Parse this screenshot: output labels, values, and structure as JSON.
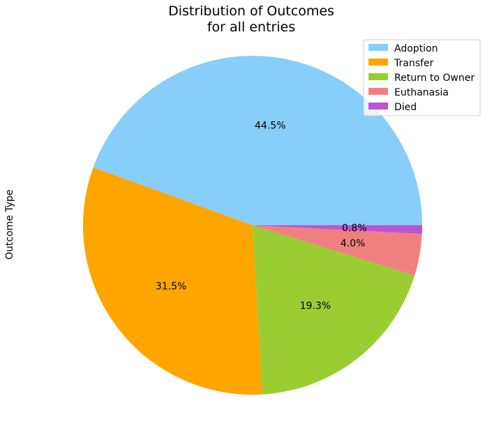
{
  "chart_data": {
    "type": "pie",
    "title": [
      "Distribution of Outcomes",
      "for all entries"
    ],
    "ylabel": "Outcome Type",
    "legend_position": "top-right",
    "slices": [
      {
        "label": "Adoption",
        "value": 44.5,
        "pct_label": "44.5%",
        "color": "#87CEFA"
      },
      {
        "label": "Transfer",
        "value": 31.5,
        "pct_label": "31.5%",
        "color": "#FFA500"
      },
      {
        "label": "Return to Owner",
        "value": 19.3,
        "pct_label": "19.3%",
        "color": "#9ACD32"
      },
      {
        "label": "Euthanasia",
        "value": 4.0,
        "pct_label": "4.0%",
        "color": "#F08080"
      },
      {
        "label": "Died",
        "value": 0.8,
        "pct_label": "0.8%",
        "color": "#BA55D3"
      }
    ]
  }
}
